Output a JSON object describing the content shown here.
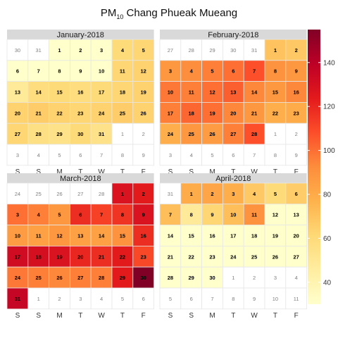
{
  "title_main": "PM",
  "title_sub": "10",
  "title_rest": " Chang Phueak Mueang",
  "weekday_labels": [
    "S",
    "S",
    "M",
    "T",
    "W",
    "T",
    "F"
  ],
  "colors": {
    "strip_bg": "#d9d9d9",
    "grid": "#e6e6e6",
    "in_month_text": "#000000",
    "out_month_text": "#808080",
    "scale_stops": [
      "#ffffcc",
      "#ffeda0",
      "#fed976",
      "#feb24c",
      "#fd8d3c",
      "#fc4e2a",
      "#e31a1c",
      "#bd0026",
      "#800026"
    ]
  },
  "chart_data": {
    "type": "heatmap",
    "title": "PM10 Chang Phueak Mueang",
    "color_scale": {
      "min": 30,
      "max": 155,
      "ticks": [
        40,
        60,
        80,
        100,
        120,
        140
      ]
    },
    "panels": [
      {
        "name": "January-2018",
        "weeks": [
          [
            30,
            31,
            1,
            2,
            3,
            4,
            5
          ],
          [
            6,
            7,
            8,
            9,
            10,
            11,
            12
          ],
          [
            13,
            14,
            15,
            16,
            17,
            18,
            19
          ],
          [
            20,
            21,
            22,
            23,
            24,
            25,
            26
          ],
          [
            27,
            28,
            29,
            30,
            31,
            1,
            2
          ],
          [
            3,
            4,
            5,
            6,
            7,
            8,
            9
          ]
        ],
        "first_in_month": 2,
        "last_in_month": 32,
        "values": [
          null,
          null,
          30,
          30,
          30,
          60,
          62,
          30,
          30,
          30,
          30,
          30,
          62,
          64,
          48,
          58,
          60,
          58,
          60,
          62,
          64,
          64,
          66,
          64,
          62,
          64,
          66,
          64,
          62,
          56,
          54,
          60,
          54,
          null,
          null,
          null,
          null,
          null,
          null,
          null,
          null,
          null
        ]
      },
      {
        "name": "February-2018",
        "weeks": [
          [
            27,
            28,
            29,
            30,
            31,
            1,
            2
          ],
          [
            3,
            4,
            5,
            6,
            7,
            8,
            9
          ],
          [
            10,
            11,
            12,
            13,
            14,
            15,
            16
          ],
          [
            17,
            18,
            19,
            20,
            21,
            22,
            23
          ],
          [
            24,
            25,
            26,
            27,
            28,
            1,
            2
          ],
          [
            3,
            4,
            5,
            6,
            7,
            8,
            9
          ]
        ],
        "first_in_month": 5,
        "last_in_month": 32,
        "values": [
          null,
          null,
          null,
          null,
          null,
          70,
          68,
          88,
          92,
          96,
          100,
          108,
          90,
          88,
          98,
          96,
          100,
          104,
          94,
          88,
          94,
          96,
          102,
          100,
          94,
          88,
          78,
          80,
          78,
          88,
          86,
          96,
          108,
          null,
          null,
          null,
          null,
          null,
          null,
          null,
          null,
          null
        ]
      },
      {
        "name": "March-2018",
        "weeks": [
          [
            24,
            25,
            26,
            27,
            28,
            1,
            2
          ],
          [
            3,
            4,
            5,
            6,
            7,
            8,
            9
          ],
          [
            10,
            11,
            12,
            13,
            14,
            15,
            16
          ],
          [
            17,
            18,
            19,
            20,
            21,
            22,
            23
          ],
          [
            24,
            25,
            26,
            27,
            28,
            29,
            30
          ],
          [
            31,
            1,
            2,
            3,
            4,
            5,
            6
          ]
        ],
        "first_in_month": 5,
        "last_in_month": 35,
        "values": [
          null,
          null,
          null,
          null,
          null,
          128,
          124,
          100,
          96,
          88,
          118,
          112,
          116,
          128,
          86,
          84,
          88,
          84,
          84,
          90,
          118,
          132,
          130,
          128,
          120,
          118,
          124,
          110,
          98,
          96,
          94,
          96,
          96,
          124,
          155,
          136,
          null,
          null,
          null,
          null,
          null,
          null
        ]
      },
      {
        "name": "April-2018",
        "weeks": [
          [
            31,
            1,
            2,
            3,
            4,
            5,
            6
          ],
          [
            7,
            8,
            9,
            10,
            11,
            12,
            13
          ],
          [
            14,
            15,
            16,
            17,
            18,
            19,
            20
          ],
          [
            21,
            22,
            23,
            24,
            25,
            26,
            27
          ],
          [
            28,
            29,
            30,
            1,
            2,
            3,
            4
          ],
          [
            5,
            6,
            7,
            8,
            9,
            10,
            11
          ]
        ],
        "first_in_month": 1,
        "last_in_month": 30,
        "values": [
          null,
          80,
          82,
          78,
          68,
          60,
          66,
          72,
          48,
          62,
          72,
          90,
          30,
          30,
          30,
          30,
          30,
          30,
          30,
          30,
          30,
          30,
          30,
          30,
          30,
          30,
          30,
          30,
          30,
          30,
          30,
          null,
          null,
          null,
          null,
          null,
          null,
          null,
          null,
          null,
          null,
          null
        ]
      }
    ]
  }
}
